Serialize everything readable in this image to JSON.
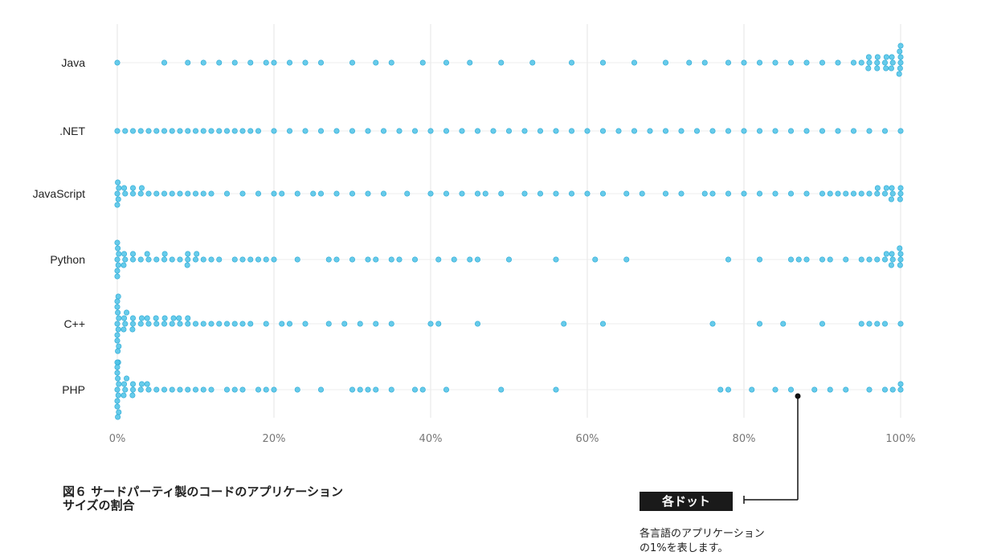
{
  "chart_data": {
    "type": "scatter",
    "categories": [
      "Java",
      ".NET",
      "JavaScript",
      "Python",
      "C++",
      "PHP"
    ],
    "x_ticks": [
      "0%",
      "20%",
      "40%",
      "60%",
      "80%",
      "100%"
    ],
    "xlim": [
      0,
      100
    ],
    "grid": true,
    "point_color": "#4cc3e8",
    "series": [
      {
        "values": [
          0,
          6,
          9,
          11,
          13,
          15,
          17,
          19,
          20,
          22,
          24,
          26,
          30,
          33,
          35,
          39,
          42,
          45,
          49,
          53,
          58,
          62,
          66,
          70,
          73,
          75,
          78,
          80,
          82,
          84,
          86,
          88,
          90,
          92,
          94,
          96,
          97,
          98,
          99,
          100,
          100,
          100,
          100,
          100,
          100,
          99,
          99,
          98,
          98,
          97,
          97,
          96,
          96,
          95
        ]
      },
      {
        "values": [
          0,
          1,
          2,
          3,
          4,
          5,
          6,
          7,
          8,
          9,
          10,
          11,
          12,
          13,
          14,
          15,
          16,
          17,
          18,
          20,
          22,
          24,
          26,
          28,
          30,
          32,
          34,
          36,
          38,
          40,
          42,
          44,
          46,
          48,
          50,
          52,
          54,
          56,
          58,
          60,
          62,
          64,
          66,
          68,
          70,
          72,
          74,
          76,
          78,
          80,
          82,
          84,
          86,
          88,
          90,
          92,
          94,
          96,
          98,
          100
        ]
      },
      {
        "values": [
          0,
          0,
          0,
          0,
          0,
          1,
          1,
          2,
          2,
          3,
          3,
          4,
          5,
          6,
          7,
          8,
          9,
          10,
          11,
          12,
          14,
          16,
          18,
          20,
          21,
          23,
          25,
          26,
          28,
          30,
          32,
          34,
          37,
          40,
          42,
          44,
          46,
          47,
          49,
          52,
          54,
          56,
          58,
          60,
          62,
          65,
          67,
          70,
          72,
          75,
          76,
          78,
          80,
          82,
          84,
          86,
          88,
          90,
          91,
          92,
          93,
          94,
          95,
          96,
          97,
          97,
          98,
          98,
          99,
          99,
          99,
          100,
          100,
          100
        ]
      },
      {
        "values": [
          0,
          0,
          0,
          0,
          0,
          0,
          0,
          1,
          1,
          1,
          2,
          2,
          3,
          4,
          4,
          5,
          6,
          6,
          7,
          8,
          9,
          9,
          9,
          10,
          10,
          11,
          12,
          13,
          15,
          16,
          17,
          18,
          19,
          20,
          23,
          27,
          28,
          30,
          32,
          33,
          35,
          36,
          38,
          41,
          43,
          45,
          46,
          50,
          56,
          61,
          65,
          78,
          82,
          86,
          87,
          88,
          90,
          91,
          93,
          95,
          96,
          97,
          98,
          98,
          99,
          99,
          99,
          100,
          100,
          100,
          100
        ]
      },
      {
        "values": [
          0,
          0,
          0,
          0,
          0,
          0,
          0,
          0,
          0,
          0,
          0,
          1,
          1,
          1,
          1,
          2,
          2,
          2,
          3,
          3,
          4,
          4,
          5,
          5,
          6,
          6,
          7,
          7,
          8,
          8,
          9,
          9,
          10,
          11,
          12,
          13,
          14,
          15,
          16,
          17,
          19,
          21,
          22,
          24,
          27,
          29,
          31,
          33,
          35,
          40,
          41,
          46,
          57,
          62,
          76,
          82,
          85,
          90,
          95,
          96,
          97,
          98,
          100
        ]
      },
      {
        "values": [
          0,
          0,
          0,
          0,
          0,
          0,
          0,
          0,
          0,
          0,
          0,
          0,
          1,
          1,
          1,
          1,
          2,
          2,
          2,
          3,
          3,
          4,
          4,
          5,
          6,
          7,
          8,
          9,
          10,
          11,
          12,
          14,
          15,
          16,
          18,
          19,
          20,
          23,
          26,
          30,
          31,
          32,
          33,
          35,
          38,
          39,
          42,
          49,
          56,
          77,
          78,
          81,
          84,
          86,
          89,
          91,
          93,
          96,
          98,
          99,
          100,
          100
        ]
      }
    ]
  },
  "caption": {
    "line1": "図６ サードパーティ製のコードのアプリケーション",
    "line2": "サイズの割合"
  },
  "legend": {
    "badge": "各ドット",
    "note_line1": "各言語のアプリケーション",
    "note_line2": "の1%を表します。"
  }
}
